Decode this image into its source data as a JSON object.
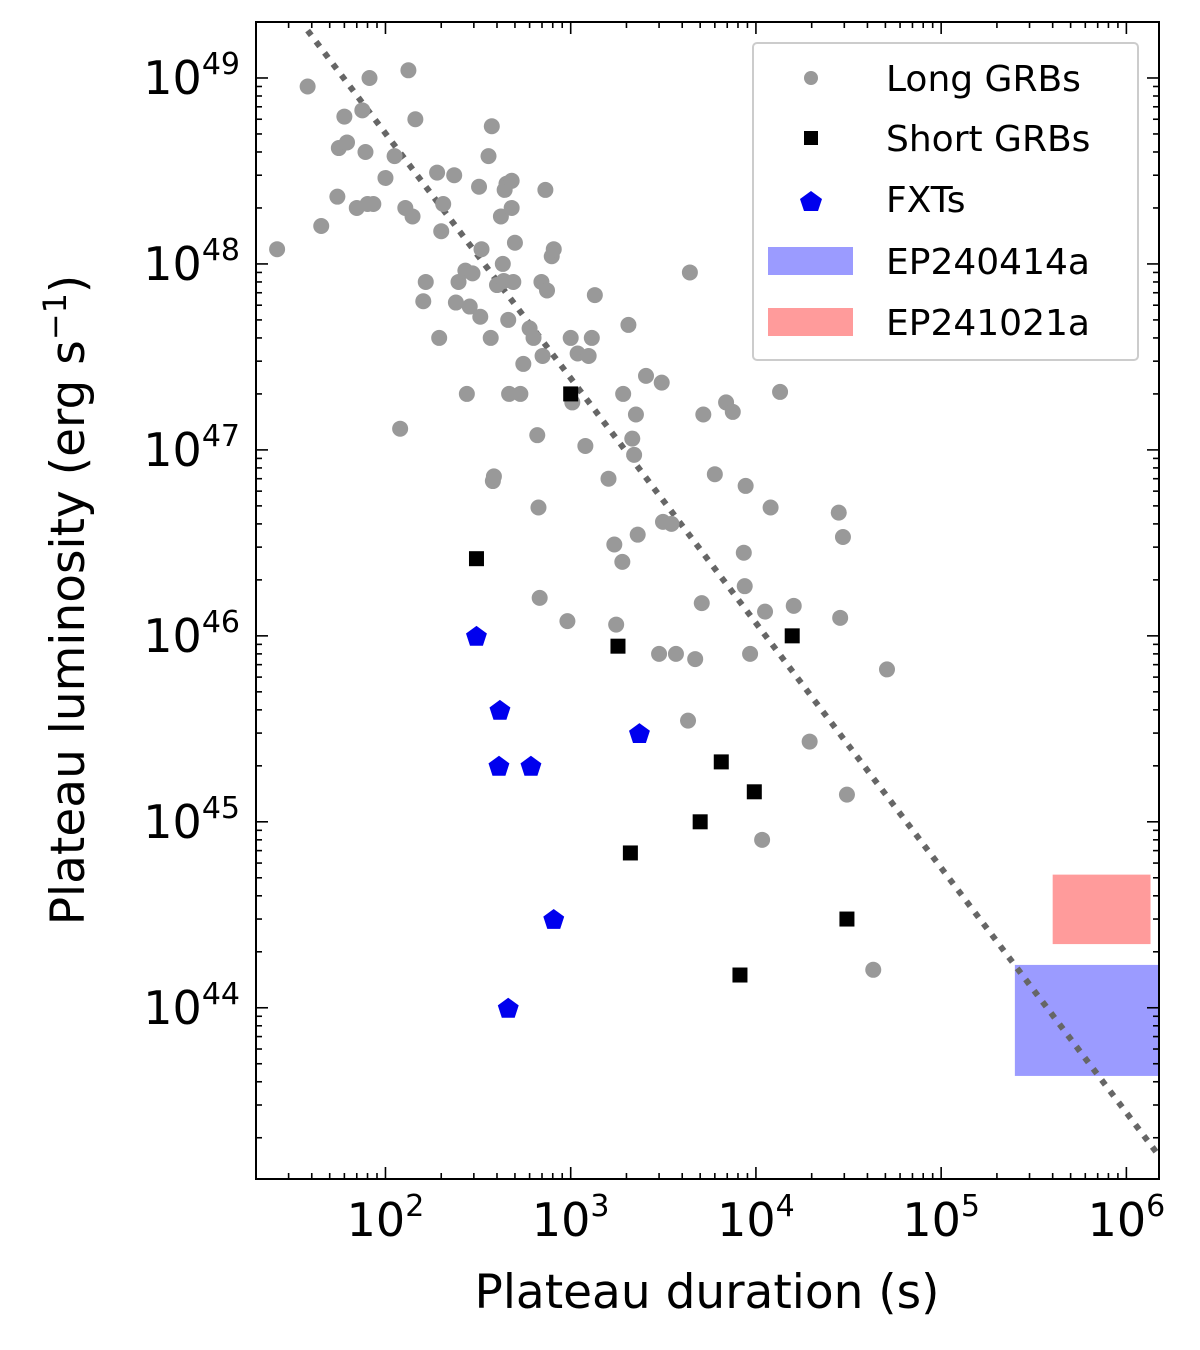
{
  "chart_data": {
    "type": "scatter",
    "xlabel": "Plateau duration (s)",
    "ylabel": "Plateau luminosity (erg s",
    "ylabel_sup": "−1",
    "ylabel_close": ")",
    "xscale": "log",
    "yscale": "log",
    "xlim": [
      20,
      1500000
    ],
    "ylim": [
      1.2e+43,
      2e+49
    ],
    "x_ticks": [
      {
        "value": 100,
        "base": "10",
        "exp": "2"
      },
      {
        "value": 1000,
        "base": "10",
        "exp": "3"
      },
      {
        "value": 10000,
        "base": "10",
        "exp": "4"
      },
      {
        "value": 100000,
        "base": "10",
        "exp": "5"
      },
      {
        "value": 1000000,
        "base": "10",
        "exp": "6"
      }
    ],
    "y_ticks": [
      {
        "value": 1e+44,
        "base": "10",
        "exp": "44"
      },
      {
        "value": 1e+45,
        "base": "10",
        "exp": "45"
      },
      {
        "value": 1e+46,
        "base": "10",
        "exp": "46"
      },
      {
        "value": 1e+47,
        "base": "10",
        "exp": "47"
      },
      {
        "value": 1e+48,
        "base": "10",
        "exp": "48"
      },
      {
        "value": 1e+49,
        "base": "10",
        "exp": "49"
      }
    ],
    "legend_position": "top-right",
    "fit_line": {
      "style": "dotted",
      "color": "#666666",
      "points": [
        [
          38,
          1.8e+49
        ],
        [
          1500000,
          1.6e+43
        ]
      ]
    },
    "series": [
      {
        "name": "Long GRBs",
        "marker": "circle",
        "color": "#999999",
        "points": [
          [
            26,
            1.2e+48
          ],
          [
            38,
            9e+48
          ],
          [
            45,
            1.6e+48
          ],
          [
            55,
            2.3e+48
          ],
          [
            56,
            4.2e+48
          ],
          [
            60,
            6.2e+48
          ],
          [
            62,
            4.5e+48
          ],
          [
            70,
            2e+48
          ],
          [
            75,
            6.7e+48
          ],
          [
            78,
            4e+48
          ],
          [
            80,
            2.1e+48
          ],
          [
            82,
            1e+49
          ],
          [
            86,
            2.1e+48
          ],
          [
            100,
            2.9e+48
          ],
          [
            112,
            3.8e+48
          ],
          [
            128,
            2e+48
          ],
          [
            133,
            1.1e+49
          ],
          [
            140,
            1.8e+48
          ],
          [
            145,
            6e+48
          ],
          [
            120,
            1.3e+47
          ],
          [
            160,
            6.3e+47
          ],
          [
            165,
            8e+47
          ],
          [
            190,
            3.1e+48
          ],
          [
            195,
            4e+47
          ],
          [
            200,
            1.5e+48
          ],
          [
            205,
            2.1e+48
          ],
          [
            235,
            3e+48
          ],
          [
            240,
            6.2e+47
          ],
          [
            248,
            8e+47
          ],
          [
            270,
            9.2e+47
          ],
          [
            275,
            2e+47
          ],
          [
            285,
            5.9e+47
          ],
          [
            295,
            8.9e+47
          ],
          [
            320,
            2.6e+48
          ],
          [
            325,
            5.2e+47
          ],
          [
            330,
            1.2e+48
          ],
          [
            360,
            3.8e+48
          ],
          [
            370,
            4e+47
          ],
          [
            375,
            5.5e+48
          ],
          [
            380,
            6.8e+46
          ],
          [
            385,
            7.2e+46
          ],
          [
            400,
            7.7e+47
          ],
          [
            420,
            1.8e+48
          ],
          [
            430,
            1e+48
          ],
          [
            435,
            8.1e+47
          ],
          [
            440,
            2.5e+48
          ],
          [
            450,
            2.7e+48
          ],
          [
            460,
            5e+47
          ],
          [
            465,
            2e+47
          ],
          [
            480,
            2.8e+48
          ],
          [
            480,
            2e+48
          ],
          [
            490,
            8e+47
          ],
          [
            500,
            1.3e+48
          ],
          [
            535,
            2e+47
          ],
          [
            555,
            2.9e+47
          ],
          [
            600,
            4.5e+47
          ],
          [
            630,
            4e+47
          ],
          [
            660,
            1.2e+47
          ],
          [
            670,
            4.9e+46
          ],
          [
            680,
            1.6e+46
          ],
          [
            695,
            8e+47
          ],
          [
            705,
            3.2e+47
          ],
          [
            730,
            2.5e+48
          ],
          [
            745,
            7.2e+47
          ],
          [
            790,
            1.1e+48
          ],
          [
            810,
            1.2e+48
          ],
          [
            960,
            1.2e+46
          ],
          [
            1000,
            4e+47
          ],
          [
            1020,
            1.8e+47
          ],
          [
            1090,
            3.3e+47
          ],
          [
            1200,
            1.05e+47
          ],
          [
            1250,
            3.2e+47
          ],
          [
            1300,
            4e+47
          ],
          [
            1350,
            6.8e+47
          ],
          [
            1600,
            7e+46
          ],
          [
            1720,
            3.1e+46
          ],
          [
            1760,
            1.15e+46
          ],
          [
            1900,
            2.5e+46
          ],
          [
            1920,
            2e+47
          ],
          [
            2050,
            4.7e+47
          ],
          [
            2150,
            1.15e+47
          ],
          [
            2200,
            9.4e+46
          ],
          [
            2250,
            1.55e+47
          ],
          [
            2300,
            3.5e+46
          ],
          [
            2550,
            2.5e+47
          ],
          [
            3000,
            8e+45
          ],
          [
            3100,
            2.3e+47
          ],
          [
            3150,
            4.1e+46
          ],
          [
            3500,
            4e+46
          ],
          [
            3700,
            8e+45
          ],
          [
            4300,
            3.5e+45
          ],
          [
            4400,
            9e+47
          ],
          [
            4700,
            7.5e+45
          ],
          [
            5100,
            1.5e+46
          ],
          [
            5200,
            1.55e+47
          ],
          [
            6000,
            7.4e+46
          ],
          [
            6900,
            1.8e+47
          ],
          [
            7500,
            1.6e+47
          ],
          [
            8600,
            2.8e+46
          ],
          [
            8700,
            1.85e+46
          ],
          [
            8800,
            6.4e+46
          ],
          [
            9300,
            8e+45
          ],
          [
            10800,
            8e+44
          ],
          [
            11200,
            1.35e+46
          ],
          [
            12000,
            4.9e+46
          ],
          [
            13500,
            2.05e+47
          ],
          [
            16000,
            1.45e+46
          ],
          [
            19500,
            2.7e+45
          ],
          [
            28000,
            4.6e+46
          ],
          [
            28500,
            1.25e+46
          ],
          [
            29500,
            3.4e+46
          ],
          [
            31000,
            1.4e+45
          ],
          [
            43000,
            1.6e+44
          ],
          [
            51000,
            6.6e+45
          ]
        ]
      },
      {
        "name": "Short GRBs",
        "marker": "square",
        "color": "#000000",
        "points": [
          [
            310,
            2.6e+46
          ],
          [
            1000,
            2e+47
          ],
          [
            1800,
            8.8e+45
          ],
          [
            2100,
            6.8e+44
          ],
          [
            5000,
            1e+45
          ],
          [
            6500,
            2.1e+45
          ],
          [
            8200,
            1.5e+44
          ],
          [
            9800,
            1.45e+45
          ],
          [
            15700,
            1e+46
          ],
          [
            31000,
            3e+44
          ]
        ]
      },
      {
        "name": "FXTs",
        "marker": "pentagon",
        "color": "#0000ee",
        "points": [
          [
            310,
            1e+46
          ],
          [
            415,
            4e+45
          ],
          [
            410,
            2e+45
          ],
          [
            610,
            2e+45
          ],
          [
            460,
            1e+44
          ],
          [
            810,
            3e+44
          ],
          [
            2350,
            3e+45
          ]
        ]
      }
    ],
    "regions": [
      {
        "name": "EP240414a",
        "color": "#9b9bff",
        "x": [
          250000,
          1500000
        ],
        "y": [
          4.3e+43,
          1.7e+44
        ]
      },
      {
        "name": "EP241021a",
        "color": "#ff9b9b",
        "x": [
          400000,
          1350000
        ],
        "y": [
          2.2e+44,
          5.2e+44
        ]
      }
    ]
  }
}
